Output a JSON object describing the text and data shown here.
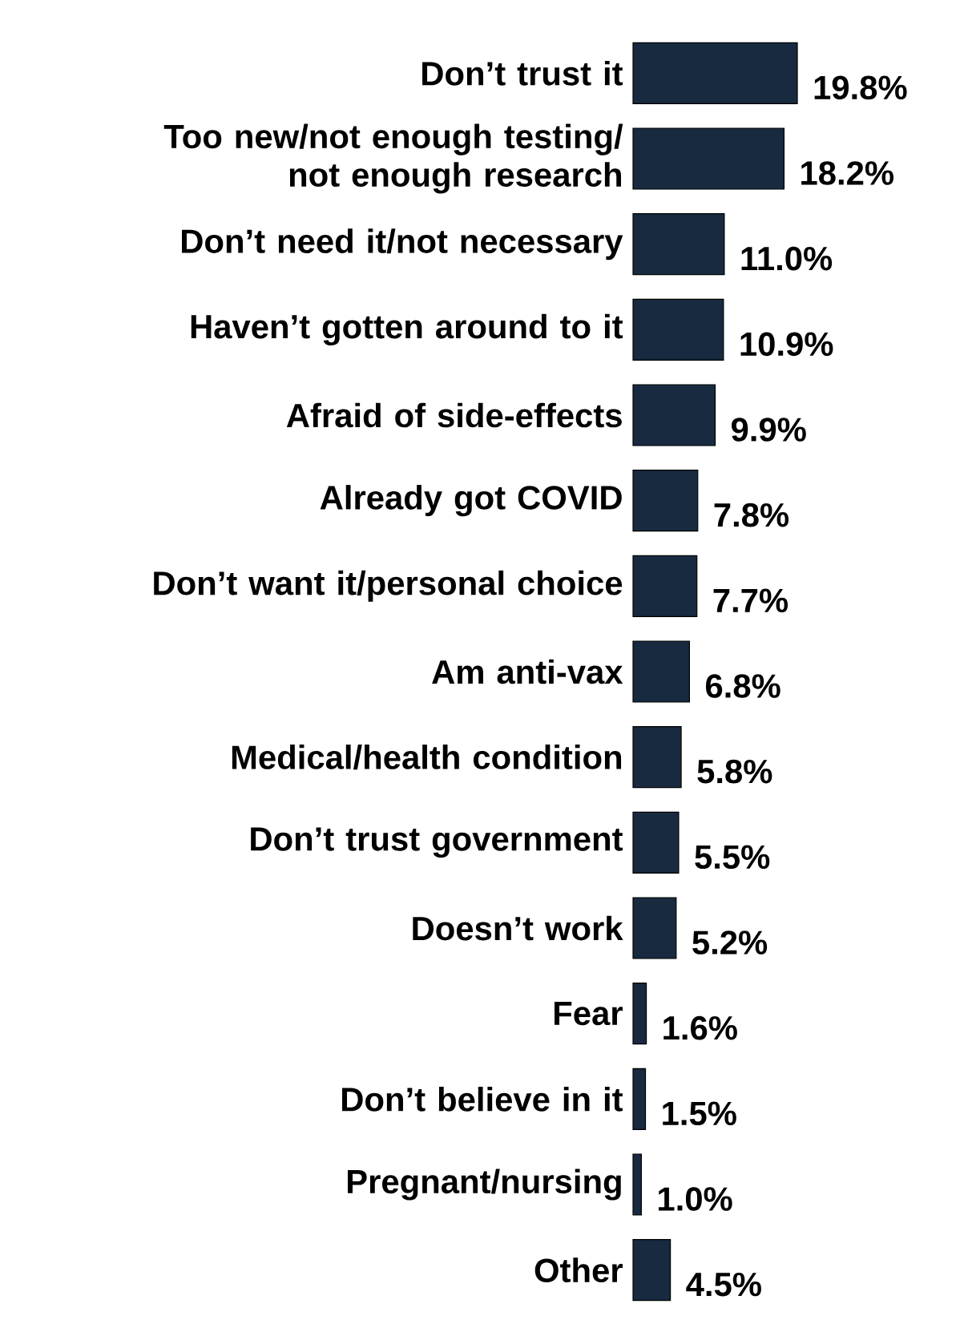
{
  "chart_data": {
    "type": "bar",
    "orientation": "horizontal",
    "categories": [
      "Don’t trust it",
      "Too new/not enough testing/ not enough research",
      "Don’t need it/not necessary",
      "Haven’t gotten around to it",
      "Afraid of side-effects",
      "Already got COVID",
      "Don’t want it/personal choice",
      "Am anti-vax",
      "Medical/health condition",
      "Don’t trust government",
      "Doesn’t work",
      "Fear",
      "Don’t believe in it",
      "Pregnant/nursing",
      "Other"
    ],
    "values": [
      19.8,
      18.2,
      11.0,
      10.9,
      9.9,
      7.8,
      7.7,
      6.8,
      5.8,
      5.5,
      5.2,
      1.6,
      1.5,
      1.0,
      4.5
    ],
    "value_labels": [
      "19.8%",
      "18.2%",
      "11.0%",
      "10.9%",
      "9.9%",
      "7.8%",
      "7.7%",
      "6.8%",
      "5.8%",
      "5.5%",
      "5.2%",
      "1.6%",
      "1.5%",
      "1.0%",
      "4.5%"
    ],
    "color": "#172a3f"
  }
}
